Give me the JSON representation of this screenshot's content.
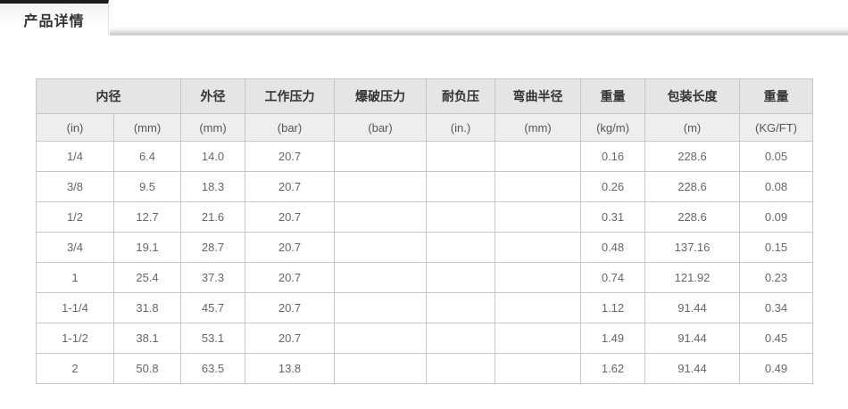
{
  "tabs": [
    {
      "label": "产品详情",
      "active": true
    }
  ],
  "colors": {
    "tab_top_bar": "#1b1b1b",
    "tab_text": "#333333",
    "group_header_bg": "#e5e5e5",
    "unit_header_bg": "#eeeeee",
    "table_border": "#c6c6c6",
    "data_text": "#666666"
  },
  "table": {
    "groups": [
      {
        "label": "内径",
        "span": 2
      },
      {
        "label": "外径",
        "span": 1
      },
      {
        "label": "工作压力",
        "span": 1
      },
      {
        "label": "爆破压力",
        "span": 1
      },
      {
        "label": "耐负压",
        "span": 1
      },
      {
        "label": "弯曲半径",
        "span": 1
      },
      {
        "label": "重量",
        "span": 1
      },
      {
        "label": "包装长度",
        "span": 1
      },
      {
        "label": "重量",
        "span": 1
      }
    ],
    "units": [
      "(in)",
      "(mm)",
      "(mm)",
      "(bar)",
      "(bar)",
      "(in.)",
      "(mm)",
      "(kg/m)",
      "(m)",
      "(KG/FT)"
    ],
    "rows": [
      [
        "1/4",
        "6.4",
        "14.0",
        "20.7",
        "",
        "",
        "",
        "0.16",
        "228.6",
        "0.05"
      ],
      [
        "3/8",
        "9.5",
        "18.3",
        "20.7",
        "",
        "",
        "",
        "0.26",
        "228.6",
        "0.08"
      ],
      [
        "1/2",
        "12.7",
        "21.6",
        "20.7",
        "",
        "",
        "",
        "0.31",
        "228.6",
        "0.09"
      ],
      [
        "3/4",
        "19.1",
        "28.7",
        "20.7",
        "",
        "",
        "",
        "0.48",
        "137.16",
        "0.15"
      ],
      [
        "1",
        "25.4",
        "37.3",
        "20.7",
        "",
        "",
        "",
        "0.74",
        "121.92",
        "0.23"
      ],
      [
        "1-1/4",
        "31.8",
        "45.7",
        "20.7",
        "",
        "",
        "",
        "1.12",
        "91.44",
        "0.34"
      ],
      [
        "1-1/2",
        "38.1",
        "53.1",
        "20.7",
        "",
        "",
        "",
        "1.49",
        "91.44",
        "0.45"
      ],
      [
        "2",
        "50.8",
        "63.5",
        "13.8",
        "",
        "",
        "",
        "1.62",
        "91.44",
        "0.49"
      ]
    ]
  }
}
